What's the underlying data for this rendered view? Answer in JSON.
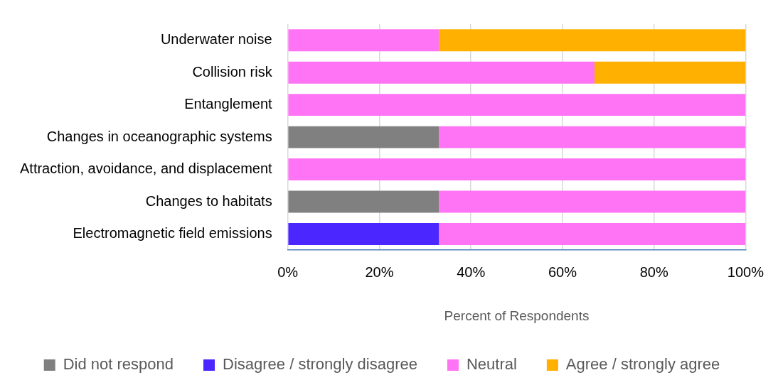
{
  "chart_data": {
    "type": "bar",
    "orientation": "horizontal",
    "stacked": true,
    "categories": [
      "Underwater noise",
      "Collision risk",
      "Entanglement",
      "Changes in oceanographic systems",
      "Attraction, avoidance, and displacement",
      "Changes to habitats",
      "Electromagnetic field emissions"
    ],
    "series": [
      {
        "name": "Did not respond",
        "color": "#808080",
        "values": [
          0,
          0,
          0,
          33,
          0,
          33,
          0
        ]
      },
      {
        "name": "Disagree / strongly disagree",
        "color": "#4b26ff",
        "values": [
          0,
          0,
          0,
          0,
          0,
          0,
          33
        ]
      },
      {
        "name": "Neutral",
        "color": "#ff74f5",
        "values": [
          33,
          67,
          100,
          67,
          100,
          67,
          67
        ]
      },
      {
        "name": "Agree / strongly agree",
        "color": "#ffb000",
        "values": [
          67,
          33,
          0,
          0,
          0,
          0,
          0
        ]
      }
    ],
    "xlabel": "Percent of Respondents",
    "xlim": [
      0,
      100
    ],
    "xticks": [
      {
        "value": 0,
        "label": "0%"
      },
      {
        "value": 20,
        "label": "20%"
      },
      {
        "value": 40,
        "label": "40%"
      },
      {
        "value": 60,
        "label": "60%"
      },
      {
        "value": 80,
        "label": "80%"
      },
      {
        "value": 100,
        "label": "100%"
      }
    ],
    "grid": "x",
    "legend": "bottom"
  }
}
